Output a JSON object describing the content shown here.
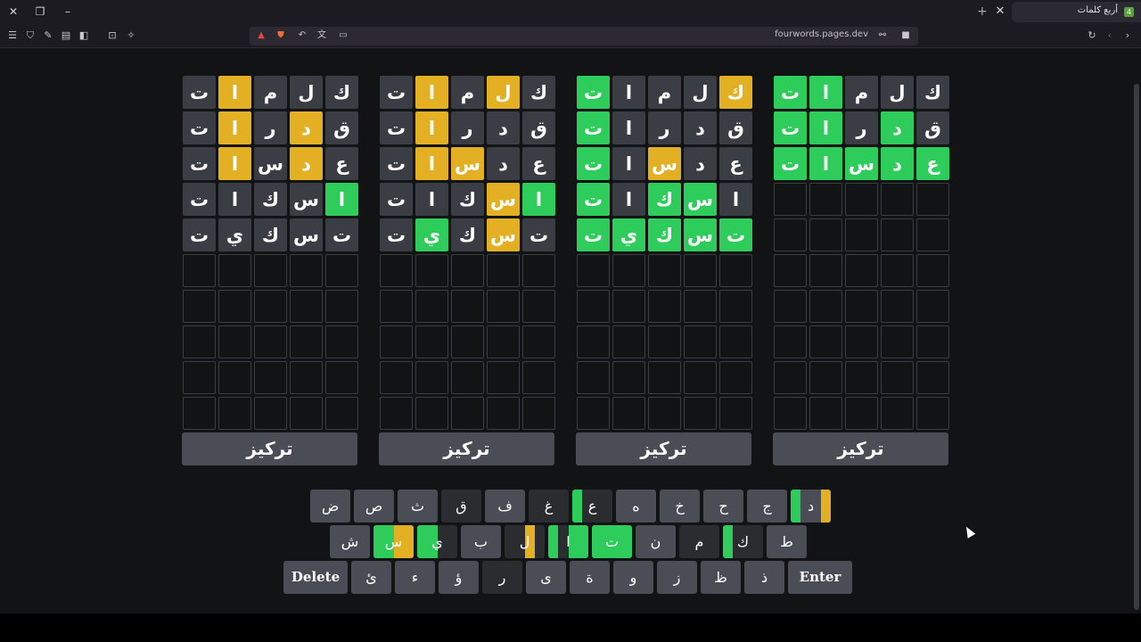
{
  "browser": {
    "tab_title": "أربع كلمات",
    "url": "fourwords.pages.dev"
  },
  "colors": {
    "gray": "#3a3d43",
    "yellow": "#e3b024",
    "green": "#2ecc5a",
    "key": "#4a4d55",
    "key_used": "#2a2c30"
  },
  "boards": [
    {
      "rows": [
        [
          [
            "ك",
            "gray"
          ],
          [
            "ل",
            "gray"
          ],
          [
            "م",
            "gray"
          ],
          [
            "ا",
            "yellow"
          ],
          [
            "ت",
            "gray"
          ]
        ],
        [
          [
            "ق",
            "gray"
          ],
          [
            "د",
            "yellow"
          ],
          [
            "ر",
            "gray"
          ],
          [
            "ا",
            "yellow"
          ],
          [
            "ت",
            "gray"
          ]
        ],
        [
          [
            "ع",
            "gray"
          ],
          [
            "د",
            "yellow"
          ],
          [
            "س",
            "gray"
          ],
          [
            "ا",
            "yellow"
          ],
          [
            "ت",
            "gray"
          ]
        ],
        [
          [
            "ا",
            "green"
          ],
          [
            "س",
            "gray"
          ],
          [
            "ك",
            "gray"
          ],
          [
            "ا",
            "gray"
          ],
          [
            "ت",
            "gray"
          ]
        ],
        [
          [
            "ت",
            "gray"
          ],
          [
            "س",
            "gray"
          ],
          [
            "ك",
            "gray"
          ],
          [
            "ي",
            "gray"
          ],
          [
            "ت",
            "gray"
          ]
        ]
      ],
      "focus_label": "تركيز"
    },
    {
      "rows": [
        [
          [
            "ك",
            "gray"
          ],
          [
            "ل",
            "yellow"
          ],
          [
            "م",
            "gray"
          ],
          [
            "ا",
            "yellow"
          ],
          [
            "ت",
            "gray"
          ]
        ],
        [
          [
            "ق",
            "gray"
          ],
          [
            "د",
            "gray"
          ],
          [
            "ر",
            "gray"
          ],
          [
            "ا",
            "yellow"
          ],
          [
            "ت",
            "gray"
          ]
        ],
        [
          [
            "ع",
            "gray"
          ],
          [
            "د",
            "gray"
          ],
          [
            "س",
            "yellow"
          ],
          [
            "ا",
            "yellow"
          ],
          [
            "ت",
            "gray"
          ]
        ],
        [
          [
            "ا",
            "green"
          ],
          [
            "س",
            "yellow"
          ],
          [
            "ك",
            "gray"
          ],
          [
            "ا",
            "gray"
          ],
          [
            "ت",
            "gray"
          ]
        ],
        [
          [
            "ت",
            "gray"
          ],
          [
            "س",
            "yellow"
          ],
          [
            "ك",
            "gray"
          ],
          [
            "ي",
            "green"
          ],
          [
            "ت",
            "gray"
          ]
        ]
      ],
      "focus_label": "تركيز"
    },
    {
      "rows": [
        [
          [
            "ك",
            "yellow"
          ],
          [
            "ل",
            "gray"
          ],
          [
            "م",
            "gray"
          ],
          [
            "ا",
            "gray"
          ],
          [
            "ت",
            "green"
          ]
        ],
        [
          [
            "ق",
            "gray"
          ],
          [
            "د",
            "gray"
          ],
          [
            "ر",
            "gray"
          ],
          [
            "ا",
            "gray"
          ],
          [
            "ت",
            "green"
          ]
        ],
        [
          [
            "ع",
            "gray"
          ],
          [
            "د",
            "gray"
          ],
          [
            "س",
            "yellow"
          ],
          [
            "ا",
            "gray"
          ],
          [
            "ت",
            "green"
          ]
        ],
        [
          [
            "ا",
            "gray"
          ],
          [
            "س",
            "green"
          ],
          [
            "ك",
            "green"
          ],
          [
            "ا",
            "gray"
          ],
          [
            "ت",
            "green"
          ]
        ],
        [
          [
            "ت",
            "green"
          ],
          [
            "س",
            "green"
          ],
          [
            "ك",
            "green"
          ],
          [
            "ي",
            "green"
          ],
          [
            "ت",
            "green"
          ]
        ]
      ],
      "focus_label": "تركيز"
    },
    {
      "rows": [
        [
          [
            "ك",
            "gray"
          ],
          [
            "ل",
            "gray"
          ],
          [
            "م",
            "gray"
          ],
          [
            "ا",
            "green"
          ],
          [
            "ت",
            "green"
          ]
        ],
        [
          [
            "ق",
            "gray"
          ],
          [
            "د",
            "green"
          ],
          [
            "ر",
            "gray"
          ],
          [
            "ا",
            "green"
          ],
          [
            "ت",
            "green"
          ]
        ],
        [
          [
            "ع",
            "green"
          ],
          [
            "د",
            "green"
          ],
          [
            "س",
            "green"
          ],
          [
            "ا",
            "green"
          ],
          [
            "ت",
            "green"
          ]
        ]
      ],
      "focus_label": "تركيز"
    }
  ],
  "keyboard": {
    "rows": [
      [
        {
          "k": "د",
          "marks": [
            [
              "yellow",
              0.75,
              1.0
            ],
            [
              "green",
              0,
              0.25
            ]
          ]
        },
        {
          "k": "ج"
        },
        {
          "k": "ح"
        },
        {
          "k": "خ"
        },
        {
          "k": "ه"
        },
        {
          "k": "ع",
          "marks": [
            [
              "green",
              0,
              0.25
            ]
          ],
          "used": true
        },
        {
          "k": "غ",
          "used": true
        },
        {
          "k": "ف"
        },
        {
          "k": "ق",
          "used": true
        },
        {
          "k": "ث"
        },
        {
          "k": "ص"
        },
        {
          "k": "ض"
        }
      ],
      [
        {
          "k": "ط"
        },
        {
          "k": "ك",
          "marks": [
            [
              "green",
              0,
              0.25
            ]
          ],
          "used": true
        },
        {
          "k": "م",
          "used": true
        },
        {
          "k": "ن"
        },
        {
          "k": "ت",
          "marks": [
            [
              "green",
              0,
              1.0
            ]
          ]
        },
        {
          "k": "ا",
          "marks": [
            [
              "green",
              0.5,
              1.0
            ],
            [
              "green",
              0,
              0.25
            ]
          ],
          "used": true
        },
        {
          "k": "ل",
          "marks": [
            [
              "yellow",
              0.5,
              0.75
            ]
          ],
          "used": true
        },
        {
          "k": "ب"
        },
        {
          "k": "ي",
          "marks": [
            [
              "green",
              0,
              0.5
            ]
          ],
          "used": true
        },
        {
          "k": "س",
          "marks": [
            [
              "yellow",
              0.5,
              1.0
            ],
            [
              "green",
              0,
              0.5
            ]
          ]
        },
        {
          "k": "ش"
        }
      ],
      [
        {
          "k": "Enter",
          "wide": true
        },
        {
          "k": "ذ"
        },
        {
          "k": "ظ"
        },
        {
          "k": "ز"
        },
        {
          "k": "و"
        },
        {
          "k": "ة"
        },
        {
          "k": "ى"
        },
        {
          "k": "ر",
          "used": true
        },
        {
          "k": "ؤ"
        },
        {
          "k": "ء"
        },
        {
          "k": "ئ"
        },
        {
          "k": "Delete",
          "wide": true
        }
      ]
    ]
  }
}
